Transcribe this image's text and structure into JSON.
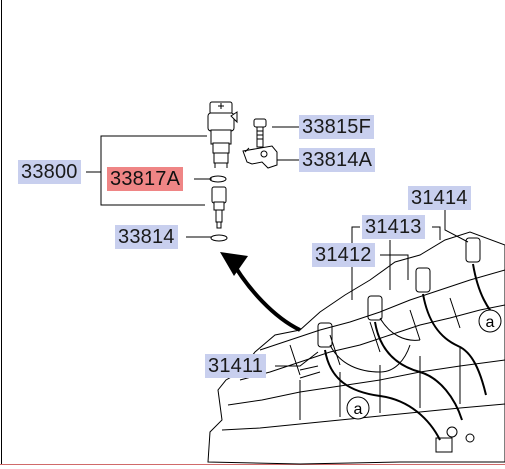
{
  "diagram": {
    "callouts": [
      {
        "id": "33800",
        "text": "33800",
        "highlighted": false
      },
      {
        "id": "33817A",
        "text": "33817A",
        "highlighted": true
      },
      {
        "id": "33814",
        "text": "33814",
        "highlighted": false
      },
      {
        "id": "33815F",
        "text": "33815F",
        "highlighted": false
      },
      {
        "id": "33814A",
        "text": "33814A",
        "highlighted": false
      },
      {
        "id": "31414",
        "text": "31414",
        "highlighted": false
      },
      {
        "id": "31413",
        "text": "31413",
        "highlighted": false
      },
      {
        "id": "31412",
        "text": "31412",
        "highlighted": false
      },
      {
        "id": "31411",
        "text": "31411",
        "highlighted": false
      }
    ],
    "markers": [
      {
        "id": "a-upper",
        "text": "a"
      },
      {
        "id": "a-lower",
        "text": "a"
      }
    ],
    "colors": {
      "callout_fill": "#c8cfee",
      "highlight_fill": "#ef8585",
      "line": "#000000"
    }
  }
}
